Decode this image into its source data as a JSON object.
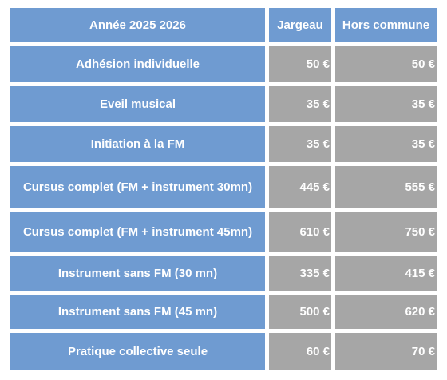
{
  "header": {
    "label": "Année 2025 2026",
    "col_local": "Jargeau",
    "col_outside": "Hors commune"
  },
  "rows": [
    {
      "label": "Adhésion individuelle",
      "local": "50 €",
      "outside": "50 €"
    },
    {
      "label": "Eveil musical",
      "local": "35 €",
      "outside": "35 €"
    },
    {
      "label": "Initiation à la FM",
      "local": "35 €",
      "outside": "35 €"
    },
    {
      "label": "Cursus complet (FM + instrument 30mn)",
      "local": "445 €",
      "outside": "555 €"
    },
    {
      "label": "Cursus complet (FM + instrument 45mn)",
      "local": "610 €",
      "outside": "750 €"
    },
    {
      "label": "Instrument sans FM (30 mn)",
      "local": "335 €",
      "outside": "415 €"
    },
    {
      "label": "Instrument sans FM (45 mn)",
      "local": "500 €",
      "outside": "620 €"
    },
    {
      "label": "Pratique collective seule",
      "local": "60 €",
      "outside": "70 €"
    }
  ],
  "colors": {
    "header_blue": "#6f9bd1",
    "value_gray": "#a6a6a6",
    "text": "#ffffff"
  }
}
